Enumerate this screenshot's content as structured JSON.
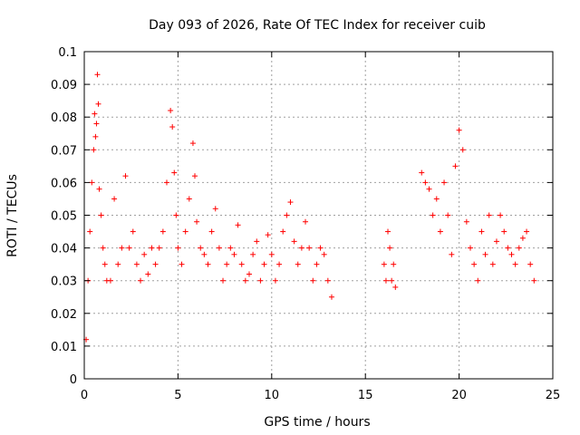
{
  "chart_data": {
    "type": "scatter",
    "title": "Day 093 of 2026, Rate Of TEC Index for receiver cuib",
    "xlabel": "GPS time / hours",
    "ylabel": "ROTI / TECUs",
    "xlim": [
      0,
      25
    ],
    "ylim": [
      0,
      0.1
    ],
    "xticks": [
      0,
      5,
      10,
      15,
      20,
      25
    ],
    "xtick_labels": [
      "0",
      "5",
      "10",
      "15",
      "20",
      "25"
    ],
    "yticks": [
      0,
      0.01,
      0.02,
      0.03,
      0.04,
      0.05,
      0.06,
      0.07,
      0.08,
      0.09,
      0.1
    ],
    "ytick_labels": [
      "0",
      "0.01",
      "0.02",
      "0.03",
      "0.04",
      "0.05",
      "0.06",
      "0.07",
      "0.08",
      "0.09",
      "0.1"
    ],
    "grid": true,
    "marker": "plus",
    "color": "#ff0000",
    "series": [
      {
        "x": [
          0.1,
          0.2,
          0.3,
          0.4,
          0.5,
          0.55,
          0.6,
          0.65,
          0.7,
          0.75,
          0.8,
          0.9,
          1.0,
          1.1,
          1.2,
          1.4,
          1.6,
          1.8,
          2.0,
          2.2,
          2.4,
          2.6,
          2.8,
          3.0,
          3.2,
          3.4,
          3.6,
          3.8,
          4.0,
          4.2,
          4.4,
          4.6,
          4.7,
          4.8,
          4.9,
          5.0,
          5.2,
          5.4,
          5.6,
          5.8,
          5.9,
          6.0,
          6.2,
          6.4,
          6.6,
          6.8,
          7.0,
          7.2,
          7.4,
          7.6,
          7.8,
          8.0,
          8.2,
          8.4,
          8.6,
          8.8,
          9.0,
          9.2,
          9.4,
          9.6,
          9.8,
          10.0,
          10.2,
          10.4,
          10.6,
          10.8,
          11.0,
          11.2,
          11.4,
          11.6,
          11.8,
          12.0,
          12.2,
          12.4,
          12.6,
          12.8,
          13.0,
          13.2,
          16.0,
          16.1,
          16.2,
          16.3,
          16.4,
          16.5,
          16.6,
          18.0,
          18.2,
          18.4,
          18.6,
          18.8,
          19.0,
          19.2,
          19.4,
          19.6,
          19.8,
          20.0,
          20.2,
          20.4,
          20.6,
          20.8,
          21.0,
          21.2,
          21.4,
          21.6,
          21.8,
          22.0,
          22.2,
          22.4,
          22.6,
          22.8,
          23.0,
          23.2,
          23.4,
          23.6,
          23.8,
          24.0
        ],
        "y": [
          0.012,
          0.03,
          0.045,
          0.06,
          0.07,
          0.081,
          0.074,
          0.078,
          0.093,
          0.084,
          0.058,
          0.05,
          0.04,
          0.035,
          0.03,
          0.03,
          0.055,
          0.035,
          0.04,
          0.062,
          0.04,
          0.045,
          0.035,
          0.03,
          0.038,
          0.032,
          0.04,
          0.035,
          0.04,
          0.045,
          0.06,
          0.082,
          0.077,
          0.063,
          0.05,
          0.04,
          0.035,
          0.045,
          0.055,
          0.072,
          0.062,
          0.048,
          0.04,
          0.038,
          0.035,
          0.045,
          0.052,
          0.04,
          0.03,
          0.035,
          0.04,
          0.038,
          0.047,
          0.035,
          0.03,
          0.032,
          0.038,
          0.042,
          0.03,
          0.035,
          0.044,
          0.038,
          0.03,
          0.035,
          0.045,
          0.05,
          0.054,
          0.042,
          0.035,
          0.04,
          0.048,
          0.04,
          0.03,
          0.035,
          0.04,
          0.038,
          0.03,
          0.025,
          0.035,
          0.03,
          0.045,
          0.04,
          0.03,
          0.035,
          0.028,
          0.063,
          0.06,
          0.058,
          0.05,
          0.055,
          0.045,
          0.06,
          0.05,
          0.038,
          0.065,
          0.076,
          0.07,
          0.048,
          0.04,
          0.035,
          0.03,
          0.045,
          0.038,
          0.05,
          0.035,
          0.042,
          0.05,
          0.045,
          0.04,
          0.038,
          0.035,
          0.04,
          0.043,
          0.045,
          0.035,
          0.03
        ]
      }
    ]
  }
}
